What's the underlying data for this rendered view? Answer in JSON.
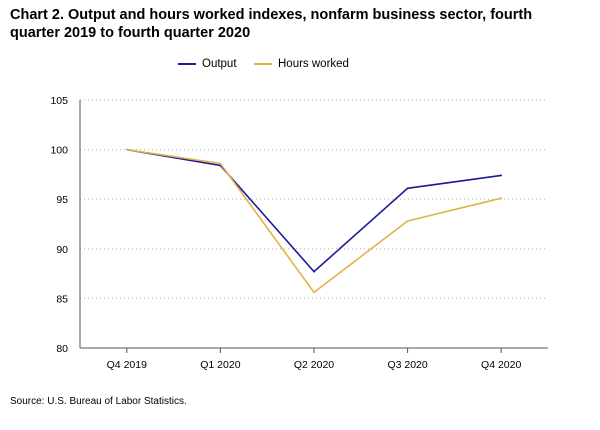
{
  "chart_title": "Chart 2. Output and hours worked indexes, nonfarm business sector, fourth quarter 2019 to fourth quarter 2020",
  "source_note": "Source: U.S. Bureau of Labor Statistics.",
  "chart_data": {
    "type": "line",
    "title": "Chart 2. Output and hours worked indexes, nonfarm business sector, fourth quarter 2019 to fourth quarter 2020",
    "xlabel": "",
    "ylabel": "",
    "categories": [
      "Q4 2019",
      "Q1 2020",
      "Q2 2020",
      "Q3 2020",
      "Q4 2020"
    ],
    "ylim": [
      80,
      105
    ],
    "yticks": [
      80,
      85,
      90,
      95,
      100,
      105
    ],
    "grid": "horizontal dotted",
    "legend_position": "top",
    "series": [
      {
        "name": "Output",
        "color": "#1c1a9c",
        "values": [
          100.0,
          98.4,
          87.7,
          96.1,
          97.4
        ]
      },
      {
        "name": "Hours worked",
        "color": "#e0b346",
        "values": [
          100.0,
          98.6,
          85.6,
          92.8,
          95.1
        ]
      }
    ]
  }
}
